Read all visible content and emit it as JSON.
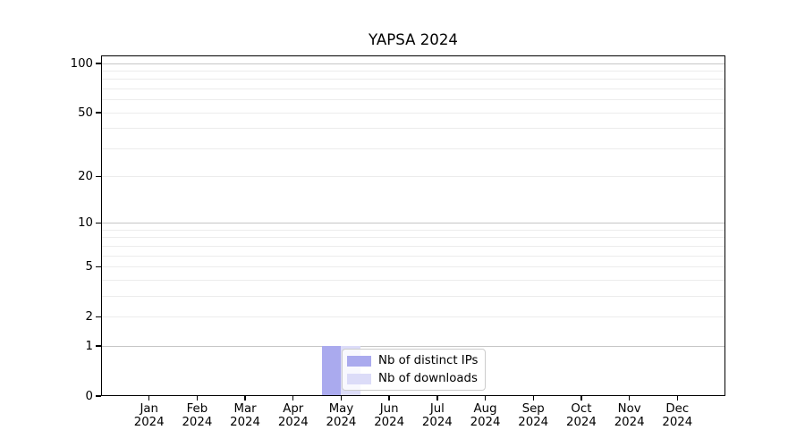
{
  "chart_data": {
    "type": "bar",
    "title": "YAPSA 2024",
    "categories": [
      "Jan 2024",
      "Feb 2024",
      "Mar 2024",
      "Apr 2024",
      "May 2024",
      "Jun 2024",
      "Jul 2024",
      "Aug 2024",
      "Sep 2024",
      "Oct 2024",
      "Nov 2024",
      "Dec 2024"
    ],
    "series": [
      {
        "name": "Nb of distinct IPs",
        "color": "#aaaaee",
        "values": [
          0,
          0,
          0,
          0,
          1,
          0,
          0,
          0,
          0,
          0,
          0,
          0
        ]
      },
      {
        "name": "Nb of downloads",
        "color": "#dcdcf8",
        "values": [
          0,
          0,
          0,
          0,
          1,
          0,
          0,
          0,
          0,
          0,
          0,
          0
        ]
      }
    ],
    "xlabel": "",
    "ylabel": "",
    "yscale": "log10(1+y)",
    "ylim": [
      0,
      112
    ],
    "yticks": [
      0,
      1,
      2,
      5,
      10,
      20,
      50,
      100
    ],
    "yticks_minor": [
      3,
      4,
      6,
      7,
      8,
      9,
      30,
      40,
      60,
      70,
      80,
      90
    ],
    "grid": {
      "axis": "y",
      "decade_values": [
        1,
        10,
        100
      ],
      "decade_color": "#c6c6c6",
      "minor_color": "#ececec"
    },
    "legend": {
      "position": "inside-lower-center",
      "entries": [
        "Nb of distinct IPs",
        "Nb of downloads"
      ]
    },
    "colors": {
      "axis": "#000000",
      "text": "#000000",
      "background": "#ffffff"
    }
  }
}
